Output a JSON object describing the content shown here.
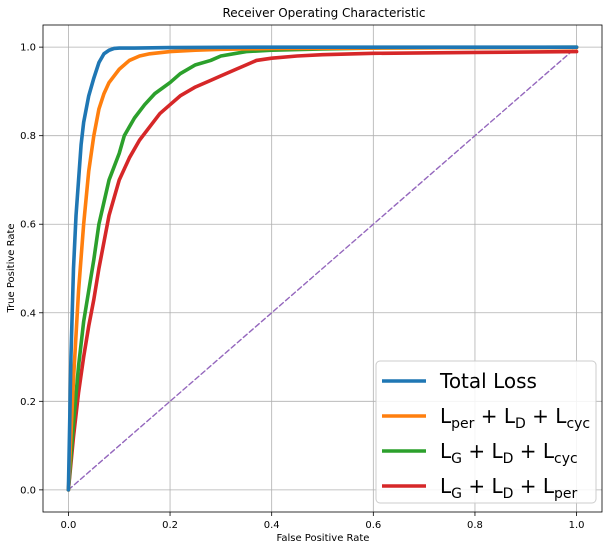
{
  "chart_data": {
    "type": "line",
    "title": "Receiver Operating Characteristic",
    "xlabel": "False Positive Rate",
    "ylabel": "True Positive Rate",
    "xlim": [
      -0.05,
      1.05
    ],
    "ylim": [
      -0.05,
      1.05
    ],
    "xticks": [
      "0.0",
      "0.2",
      "0.4",
      "0.6",
      "0.8",
      "1.0"
    ],
    "yticks": [
      "0.0",
      "0.2",
      "0.4",
      "0.6",
      "0.8",
      "1.0"
    ],
    "grid": true,
    "legend_position": "lower-right",
    "series": [
      {
        "name": "Total Loss",
        "legend": [
          {
            "t": "Total Loss"
          }
        ],
        "color": "#1f77b4",
        "x": [
          0.0,
          0.005,
          0.01,
          0.015,
          0.02,
          0.025,
          0.03,
          0.04,
          0.05,
          0.06,
          0.07,
          0.08,
          0.09,
          0.1,
          0.13,
          0.2,
          0.4,
          0.6,
          0.8,
          1.0
        ],
        "y": [
          0.0,
          0.3,
          0.5,
          0.62,
          0.7,
          0.78,
          0.83,
          0.89,
          0.93,
          0.965,
          0.985,
          0.993,
          0.997,
          0.998,
          0.998,
          0.999,
          1.0,
          1.0,
          1.0,
          1.0
        ]
      },
      {
        "name": "L_per + L_D + L_cyc",
        "legend": [
          {
            "t": "L"
          },
          {
            "t": "per",
            "sub": true
          },
          {
            "t": " + L"
          },
          {
            "t": "D",
            "sub": true
          },
          {
            "t": " + L"
          },
          {
            "t": "cyc",
            "sub": true
          }
        ],
        "color": "#ff7f0e",
        "x": [
          0.0,
          0.01,
          0.02,
          0.03,
          0.04,
          0.05,
          0.06,
          0.07,
          0.08,
          0.1,
          0.12,
          0.14,
          0.16,
          0.2,
          0.25,
          0.3,
          0.4,
          0.6,
          0.8,
          1.0
        ],
        "y": [
          0.0,
          0.25,
          0.45,
          0.6,
          0.72,
          0.8,
          0.86,
          0.895,
          0.92,
          0.95,
          0.97,
          0.98,
          0.985,
          0.99,
          0.993,
          0.995,
          0.997,
          0.998,
          0.999,
          0.999
        ]
      },
      {
        "name": "L_G + L_D + L_cyc",
        "legend": [
          {
            "t": "L"
          },
          {
            "t": "G",
            "sub": true
          },
          {
            "t": " + L"
          },
          {
            "t": "D",
            "sub": true
          },
          {
            "t": " + L"
          },
          {
            "t": "cyc",
            "sub": true
          }
        ],
        "color": "#2ca02c",
        "x": [
          0.0,
          0.01,
          0.02,
          0.03,
          0.04,
          0.05,
          0.06,
          0.07,
          0.08,
          0.1,
          0.11,
          0.12,
          0.13,
          0.15,
          0.17,
          0.2,
          0.22,
          0.25,
          0.28,
          0.3,
          0.35,
          0.4,
          0.5,
          0.6,
          0.8,
          1.0
        ],
        "y": [
          0.0,
          0.15,
          0.28,
          0.38,
          0.45,
          0.52,
          0.6,
          0.65,
          0.7,
          0.76,
          0.8,
          0.82,
          0.84,
          0.87,
          0.895,
          0.92,
          0.94,
          0.96,
          0.97,
          0.98,
          0.99,
          0.993,
          0.996,
          0.998,
          0.999,
          1.0
        ]
      },
      {
        "name": "L_G + L_D + L_per",
        "legend": [
          {
            "t": "L"
          },
          {
            "t": "G",
            "sub": true
          },
          {
            "t": " + L"
          },
          {
            "t": "D",
            "sub": true
          },
          {
            "t": " + L"
          },
          {
            "t": "per",
            "sub": true
          }
        ],
        "color": "#d62728",
        "x": [
          0.0,
          0.01,
          0.02,
          0.03,
          0.04,
          0.05,
          0.06,
          0.07,
          0.08,
          0.09,
          0.1,
          0.12,
          0.14,
          0.16,
          0.18,
          0.2,
          0.22,
          0.25,
          0.28,
          0.3,
          0.33,
          0.35,
          0.37,
          0.4,
          0.45,
          0.5,
          0.6,
          0.8,
          1.0
        ],
        "y": [
          0.0,
          0.12,
          0.22,
          0.3,
          0.37,
          0.43,
          0.5,
          0.56,
          0.62,
          0.66,
          0.7,
          0.75,
          0.79,
          0.82,
          0.85,
          0.87,
          0.89,
          0.91,
          0.925,
          0.935,
          0.95,
          0.96,
          0.97,
          0.975,
          0.98,
          0.983,
          0.986,
          0.988,
          0.99
        ]
      },
      {
        "name": "chance",
        "color": "#9467bd",
        "dashed": true,
        "x": [
          0.0,
          1.0
        ],
        "y": [
          0.0,
          1.0
        ]
      }
    ]
  }
}
